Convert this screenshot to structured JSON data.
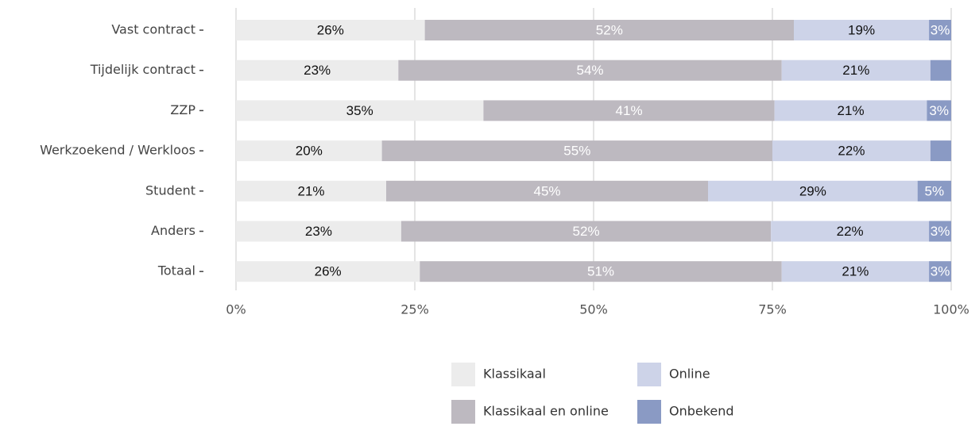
{
  "chart_data": {
    "type": "stacked_barh",
    "categories": [
      "Vast contract",
      "Tijdelijk contract",
      "ZZP",
      "Werkzoekend / Werkloos",
      "Student",
      "Anders",
      "Totaal"
    ],
    "series": [
      {
        "name": "Klassikaal",
        "color": "#ececec",
        "label_color": "#111111",
        "values": [
          26.4,
          22.7,
          34.6,
          20.4,
          21.0,
          23.1,
          25.7
        ],
        "value_labels": [
          "26%",
          "23%",
          "35%",
          "20%",
          "21%",
          "23%",
          "26%"
        ]
      },
      {
        "name": "Klassikaal en online",
        "color": "#bdb9c0",
        "label_color": "#ffffff",
        "values": [
          51.6,
          53.6,
          40.7,
          54.6,
          45.0,
          51.7,
          50.6
        ],
        "value_labels": [
          "52%",
          "54%",
          "41%",
          "55%",
          "45%",
          "52%",
          "51%"
        ]
      },
      {
        "name": "Online",
        "color": "#cdd3e8",
        "label_color": "#111111",
        "values": [
          18.9,
          20.8,
          21.3,
          22.1,
          29.3,
          22.1,
          20.6
        ],
        "value_labels": [
          "19%",
          "21%",
          "21%",
          "22%",
          "29%",
          "22%",
          "21%"
        ]
      },
      {
        "name": "Onbekend",
        "color": "#8a9ac4",
        "label_color": "#ffffff",
        "values": [
          3.1,
          2.9,
          3.4,
          2.9,
          4.7,
          3.1,
          3.1
        ],
        "value_labels": [
          "3%",
          null,
          "3%",
          null,
          "5%",
          "3%",
          "3%"
        ]
      }
    ],
    "xlim": [
      0,
      100
    ],
    "xticks": [
      {
        "value": 0,
        "label": "0%"
      },
      {
        "value": 25,
        "label": "25%"
      },
      {
        "value": 50,
        "label": "50%"
      },
      {
        "value": 75,
        "label": "75%"
      },
      {
        "value": 100,
        "label": "100%"
      }
    ],
    "grid": true
  }
}
